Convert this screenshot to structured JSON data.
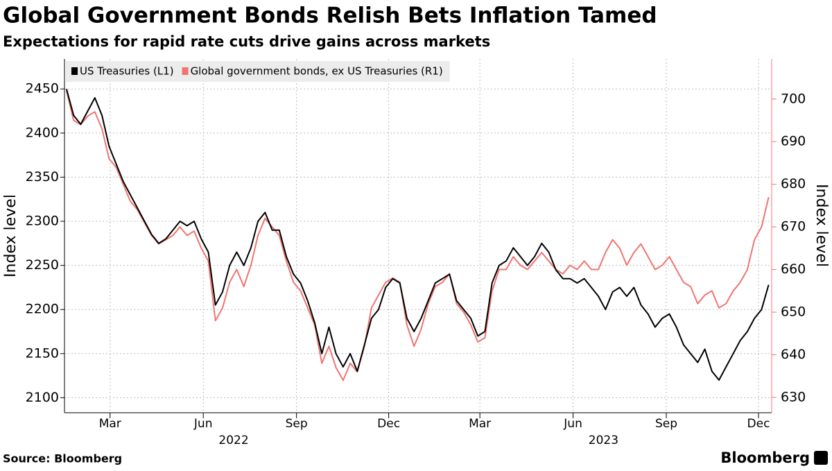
{
  "chart_data": {
    "type": "line",
    "title": "Global Government Bonds Relish Bets Inflation Tamed",
    "subtitle": "Expectations for rapid rate cuts drive gains across markets",
    "ylabel": "Index level",
    "y2label": "Index level",
    "source": "Source: Bloomberg",
    "brand": "Bloomberg",
    "x": [
      "2022-01-17",
      "2022-01-24",
      "2022-01-31",
      "2022-02-07",
      "2022-02-14",
      "2022-02-21",
      "2022-02-28",
      "2022-03-07",
      "2022-03-14",
      "2022-03-21",
      "2022-03-28",
      "2022-04-04",
      "2022-04-11",
      "2022-04-18",
      "2022-04-25",
      "2022-05-02",
      "2022-05-09",
      "2022-05-16",
      "2022-05-23",
      "2022-05-30",
      "2022-06-06",
      "2022-06-13",
      "2022-06-20",
      "2022-06-27",
      "2022-07-04",
      "2022-07-11",
      "2022-07-18",
      "2022-07-25",
      "2022-08-01",
      "2022-08-08",
      "2022-08-15",
      "2022-08-22",
      "2022-08-29",
      "2022-09-05",
      "2022-09-12",
      "2022-09-19",
      "2022-09-26",
      "2022-10-03",
      "2022-10-10",
      "2022-10-17",
      "2022-10-24",
      "2022-10-31",
      "2022-11-07",
      "2022-11-14",
      "2022-11-21",
      "2022-11-28",
      "2022-12-05",
      "2022-12-12",
      "2022-12-19",
      "2022-12-26",
      "2023-01-02",
      "2023-01-09",
      "2023-01-16",
      "2023-01-23",
      "2023-01-30",
      "2023-02-06",
      "2023-02-13",
      "2023-02-20",
      "2023-02-27",
      "2023-03-06",
      "2023-03-13",
      "2023-03-20",
      "2023-03-27",
      "2023-04-03",
      "2023-04-10",
      "2023-04-17",
      "2023-04-24",
      "2023-05-01",
      "2023-05-08",
      "2023-05-15",
      "2023-05-22",
      "2023-05-29",
      "2023-06-05",
      "2023-06-12",
      "2023-06-19",
      "2023-06-26",
      "2023-07-03",
      "2023-07-10",
      "2023-07-17",
      "2023-07-24",
      "2023-07-31",
      "2023-08-07",
      "2023-08-14",
      "2023-08-21",
      "2023-08-28",
      "2023-09-04",
      "2023-09-11",
      "2023-09-18",
      "2023-09-25",
      "2023-10-02",
      "2023-10-09",
      "2023-10-16",
      "2023-10-23",
      "2023-10-30",
      "2023-11-06",
      "2023-11-13",
      "2023-11-20",
      "2023-11-27",
      "2023-12-04",
      "2023-12-11"
    ],
    "series": [
      {
        "name": "US Treasuries (L1)",
        "color": "#000000",
        "axis": "y",
        "values": [
          2450,
          2420,
          2410,
          2425,
          2440,
          2420,
          2385,
          2365,
          2345,
          2330,
          2315,
          2300,
          2285,
          2275,
          2280,
          2290,
          2300,
          2295,
          2300,
          2280,
          2265,
          2205,
          2220,
          2250,
          2265,
          2250,
          2270,
          2300,
          2310,
          2290,
          2290,
          2260,
          2240,
          2230,
          2210,
          2185,
          2150,
          2180,
          2150,
          2135,
          2150,
          2130,
          2160,
          2190,
          2200,
          2225,
          2235,
          2230,
          2190,
          2175,
          2190,
          2210,
          2230,
          2235,
          2240,
          2210,
          2200,
          2190,
          2170,
          2175,
          2230,
          2250,
          2255,
          2270,
          2260,
          2250,
          2260,
          2275,
          2265,
          2245,
          2235,
          2235,
          2230,
          2235,
          2225,
          2215,
          2200,
          2220,
          2225,
          2215,
          2225,
          2205,
          2195,
          2180,
          2190,
          2195,
          2180,
          2160,
          2150,
          2140,
          2155,
          2130,
          2120,
          2135,
          2150,
          2165,
          2175,
          2190,
          2200,
          2228
        ]
      },
      {
        "name": "Global government bonds, ex US Treasuries (R1)",
        "color": "#f07470",
        "axis": "y2",
        "values": [
          702,
          695,
          694,
          696,
          697,
          693,
          686,
          684,
          680,
          676,
          674,
          671,
          668,
          666,
          667,
          668,
          670,
          668,
          669,
          665,
          662,
          648,
          651,
          657,
          660,
          656,
          661,
          668,
          672,
          670,
          668,
          662,
          657,
          655,
          651,
          647,
          638,
          642,
          637,
          634,
          638,
          636,
          642,
          651,
          654,
          657,
          658,
          657,
          647,
          642,
          646,
          652,
          656,
          657,
          659,
          652,
          650,
          647,
          643,
          644,
          655,
          660,
          660,
          663,
          661,
          660,
          662,
          664,
          662,
          660,
          659,
          661,
          660,
          662,
          660,
          660,
          664,
          667,
          665,
          661,
          664,
          666,
          663,
          660,
          661,
          663,
          660,
          657,
          656,
          652,
          654,
          655,
          651,
          652,
          655,
          657,
          660,
          667,
          670,
          677
        ]
      }
    ],
    "xlim": [
      "2022-01-15",
      "2023-12-14"
    ],
    "xticks": [
      {
        "value": "2022-03-01",
        "label": "Mar"
      },
      {
        "value": "2022-06-01",
        "label": "Jun"
      },
      {
        "value": "2022-09-01",
        "label": "Sep"
      },
      {
        "value": "2022-12-01",
        "label": "Dec"
      },
      {
        "value": "2023-03-01",
        "label": "Mar"
      },
      {
        "value": "2023-06-01",
        "label": "Jun"
      },
      {
        "value": "2023-09-01",
        "label": "Sep"
      },
      {
        "value": "2023-12-01",
        "label": "Dec"
      }
    ],
    "year_labels": [
      {
        "value": "2022-07-01",
        "label": "2022"
      },
      {
        "value": "2023-07-01",
        "label": "2023"
      }
    ],
    "ylim": [
      2083,
      2484
    ],
    "yticks": [
      2100,
      2150,
      2200,
      2250,
      2300,
      2350,
      2400,
      2450
    ],
    "y2lim": [
      626.4,
      709.4
    ],
    "y2ticks": [
      630,
      640,
      650,
      660,
      670,
      680,
      690,
      700
    ],
    "y2_axis_color": "#f07470",
    "grid": true,
    "legend": "top-left"
  }
}
